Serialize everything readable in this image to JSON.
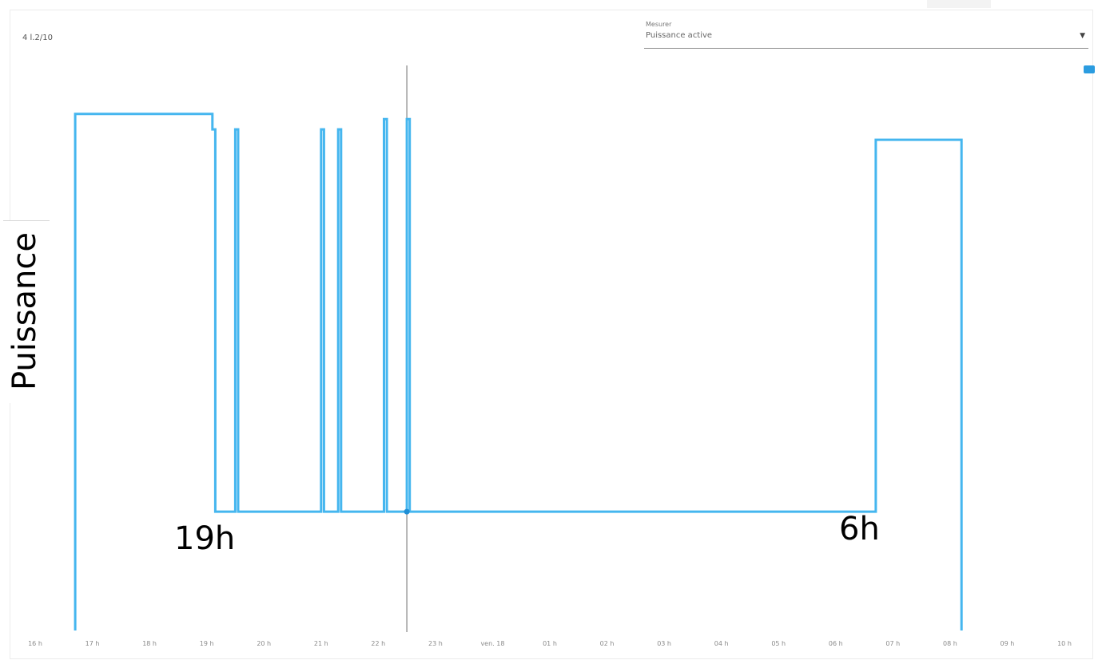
{
  "header": {
    "small_value": "4 l.2/10",
    "measure_caption": "Mesurer",
    "measure_value": "Puissance active",
    "dropdown_arrow": "▼"
  },
  "annotations": {
    "start": "19h",
    "end": "6h"
  },
  "colors": {
    "line": "#45b6ef",
    "line_dark": "#1f8fd6",
    "cursor": "#9a9a9a"
  },
  "chart_data": {
    "type": "line",
    "step": true,
    "title": "",
    "xlabel": "",
    "ylabel": "Puissance",
    "x_tick_labels": [
      "16 h",
      "17 h",
      "18 h",
      "19 h",
      "20 h",
      "21 h",
      "22 h",
      "23 h",
      "ven. 18",
      "01 h",
      "02 h",
      "03 h",
      "04 h",
      "05 h",
      "06 h",
      "07 h",
      "08 h",
      "09 h",
      "10 h"
    ],
    "xlim": [
      16,
      34
    ],
    "ylim": [
      0,
      1.1
    ],
    "grid": false,
    "legend": "right",
    "cursor_x": 22.5,
    "series": [
      {
        "points": [
          [
            16.7,
            0
          ],
          [
            16.7,
            1.0
          ],
          [
            19.1,
            1.0
          ],
          [
            19.1,
            0.97
          ],
          [
            19.15,
            0.97
          ],
          [
            19.15,
            0.23
          ],
          [
            19.5,
            0.23
          ],
          [
            19.5,
            0.97
          ],
          [
            19.55,
            0.97
          ],
          [
            19.55,
            0.23
          ],
          [
            21.0,
            0.23
          ],
          [
            21.0,
            0.97
          ],
          [
            21.05,
            0.97
          ],
          [
            21.05,
            0.23
          ],
          [
            21.3,
            0.23
          ],
          [
            21.3,
            0.97
          ],
          [
            21.35,
            0.97
          ],
          [
            21.35,
            0.23
          ],
          [
            22.1,
            0.23
          ],
          [
            22.1,
            0.99
          ],
          [
            22.15,
            0.99
          ],
          [
            22.15,
            0.23
          ],
          [
            22.5,
            0.23
          ],
          [
            22.5,
            0.99
          ],
          [
            22.55,
            0.99
          ],
          [
            22.55,
            0.23
          ],
          [
            30.7,
            0.23
          ],
          [
            30.7,
            0.95
          ],
          [
            32.2,
            0.95
          ],
          [
            32.2,
            0
          ]
        ]
      }
    ]
  }
}
